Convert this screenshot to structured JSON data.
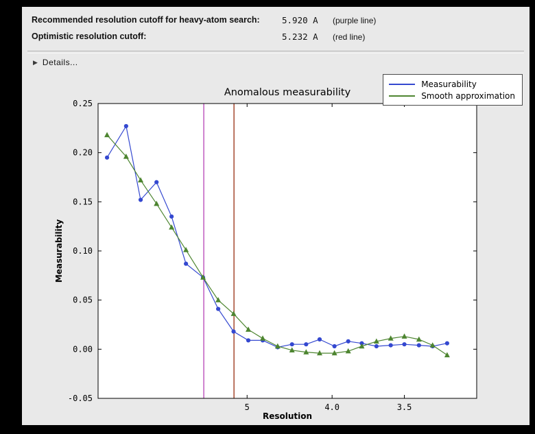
{
  "window": {
    "background": "#000000",
    "panel_background": "#e9e9e9"
  },
  "header": {
    "rows": [
      {
        "label": "Recommended resolution cutoff for heavy-atom search:",
        "value": "5.920 A",
        "note": "(purple line)"
      },
      {
        "label": "Optimistic resolution cutoff:",
        "value": "5.232 A",
        "note": "(red line)"
      }
    ]
  },
  "details": {
    "label": "Details...",
    "icon": "triangle-right",
    "glyph": "▶",
    "expanded": false
  },
  "chart_data": {
    "type": "line",
    "title": "Anomalous measurability",
    "xlabel": "Resolution",
    "ylabel": "Measurability",
    "x_scale": "inverse d-squared (resolution in Angstrom decreasing to the right)",
    "x_range_A": [
      42.6,
      3.15
    ],
    "ylim": [
      -0.05,
      0.25
    ],
    "grid": false,
    "legend_position": "upper-right",
    "y_ticks": [
      {
        "v": 0.25,
        "label": "0.25"
      },
      {
        "v": 0.2,
        "label": "0.20"
      },
      {
        "v": 0.15,
        "label": "0.15"
      },
      {
        "v": 0.1,
        "label": "0.10"
      },
      {
        "v": 0.05,
        "label": "0.05"
      },
      {
        "v": 0.0,
        "label": "0.00"
      },
      {
        "v": -0.05,
        "label": "-0.05"
      }
    ],
    "x_ticks": [
      {
        "d": 5.0,
        "label": "5"
      },
      {
        "d": 4.0,
        "label": "4.0"
      },
      {
        "d": 3.5,
        "label": "3.5"
      }
    ],
    "resolution_A": [
      18.5,
      11.2,
      9.2,
      7.9,
      7.07,
      6.48,
      5.94,
      5.56,
      5.24,
      4.98,
      4.76,
      4.56,
      4.39,
      4.24,
      4.11,
      3.98,
      3.87,
      3.77,
      3.67,
      3.58,
      3.5,
      3.42,
      3.35,
      3.28
    ],
    "series": [
      {
        "name": "Measurability",
        "color": "#3448d0",
        "marker": "circle",
        "values": [
          0.195,
          0.227,
          0.152,
          0.17,
          0.135,
          0.087,
          0.073,
          0.041,
          0.018,
          0.009,
          0.009,
          0.002,
          0.005,
          0.005,
          0.01,
          0.003,
          0.008,
          0.006,
          0.003,
          0.004,
          0.005,
          0.004,
          0.003,
          0.006
        ]
      },
      {
        "name": "Smooth approximation",
        "color": "#4d8530",
        "marker": "triangle-up",
        "values": [
          0.218,
          0.196,
          0.172,
          0.148,
          0.124,
          0.101,
          0.073,
          0.05,
          0.036,
          0.02,
          0.011,
          0.003,
          -0.001,
          -0.003,
          -0.004,
          -0.004,
          -0.002,
          0.003,
          0.008,
          0.011,
          0.013,
          0.01,
          0.004,
          -0.006
        ]
      }
    ],
    "vlines": [
      {
        "resolution_A": 5.92,
        "color": "#bb4fbb",
        "name": "recommended-cutoff-purple-line"
      },
      {
        "resolution_A": 5.232,
        "color": "#9e3a20",
        "name": "optimistic-cutoff-red-line"
      }
    ]
  }
}
